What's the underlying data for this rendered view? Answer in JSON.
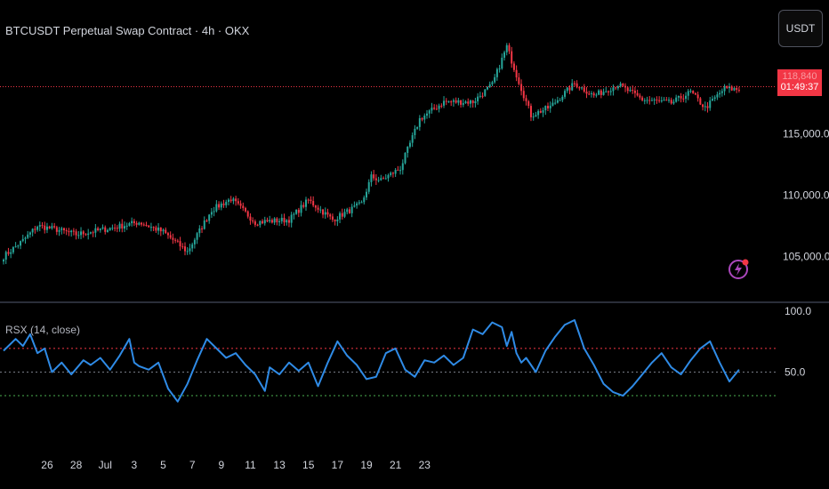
{
  "header": {
    "title": "BTCUSDT Perpetual Swap Contract · 4h · OKX",
    "currency_button": "USDT"
  },
  "price_label": {
    "countdown": "01:49:37",
    "partial_price": "118,840"
  },
  "indicator": {
    "label": "RSX (14, close)"
  },
  "icons": {
    "bolt": "lightning-bolt-icon"
  },
  "colors": {
    "background": "#000000",
    "bull": "#26a69a",
    "bear": "#f23645",
    "rsx_line": "#2f8be6",
    "grid": "#363a45",
    "level_high": "#f23645",
    "level_mid": "#787b86",
    "level_low": "#4caf50",
    "axis_text": "#d1d4dc"
  },
  "chart_data": [
    {
      "type": "candlestick",
      "title": "BTCUSDT Perpetual Swap Contract · 4h · OKX",
      "y_ticks": [
        105000,
        110000,
        115000
      ],
      "y_tick_labels": [
        "105,000.0",
        "110,000.0",
        "115,000.0"
      ],
      "ylim": [
        102000,
        123000
      ],
      "x_tick_labels": [
        "26",
        "28",
        "Jul",
        "3",
        "5",
        "7",
        "9",
        "11",
        "13",
        "15",
        "17",
        "19",
        "21",
        "23"
      ],
      "current_price_line": 118840,
      "anchors": [
        {
          "x": 0,
          "price": 105000
        },
        {
          "x": 8,
          "price": 106300
        },
        {
          "x": 14,
          "price": 107500
        },
        {
          "x": 22,
          "price": 107200
        },
        {
          "x": 30,
          "price": 106800
        },
        {
          "x": 44,
          "price": 107300
        },
        {
          "x": 56,
          "price": 107800
        },
        {
          "x": 66,
          "price": 107000
        },
        {
          "x": 76,
          "price": 105400
        },
        {
          "x": 86,
          "price": 108800
        },
        {
          "x": 94,
          "price": 109700
        },
        {
          "x": 104,
          "price": 107800
        },
        {
          "x": 118,
          "price": 108000
        },
        {
          "x": 126,
          "price": 109600
        },
        {
          "x": 136,
          "price": 108000
        },
        {
          "x": 148,
          "price": 109300
        },
        {
          "x": 152,
          "price": 111500
        },
        {
          "x": 156,
          "price": 111200
        },
        {
          "x": 164,
          "price": 112200
        },
        {
          "x": 172,
          "price": 116200
        },
        {
          "x": 182,
          "price": 117600
        },
        {
          "x": 194,
          "price": 117600
        },
        {
          "x": 202,
          "price": 119000
        },
        {
          "x": 208,
          "price": 122100
        },
        {
          "x": 212,
          "price": 119800
        },
        {
          "x": 218,
          "price": 116500
        },
        {
          "x": 226,
          "price": 117200
        },
        {
          "x": 236,
          "price": 119100
        },
        {
          "x": 244,
          "price": 118100
        },
        {
          "x": 254,
          "price": 119000
        },
        {
          "x": 264,
          "price": 117800
        },
        {
          "x": 276,
          "price": 117500
        },
        {
          "x": 284,
          "price": 118400
        },
        {
          "x": 290,
          "price": 117100
        },
        {
          "x": 298,
          "price": 118700
        },
        {
          "x": 304,
          "price": 118600
        }
      ]
    },
    {
      "type": "line",
      "name": "RSX (14, close)",
      "y_ticks": [
        50
      ],
      "y_tick_labels": [
        "50.0"
      ],
      "top_label": "100.0",
      "ylim": [
        15,
        100
      ],
      "levels": [
        70,
        50,
        30
      ],
      "x": [
        0,
        5,
        8,
        11,
        14,
        17,
        20,
        24,
        28,
        33,
        36,
        40,
        44,
        48,
        52,
        54,
        56,
        60,
        64,
        68,
        72,
        76,
        80,
        84,
        88,
        92,
        96,
        100,
        104,
        108,
        110,
        114,
        118,
        122,
        126,
        130,
        134,
        138,
        142,
        146,
        150,
        154,
        158,
        162,
        166,
        170,
        174,
        178,
        182,
        186,
        190,
        194,
        198,
        202,
        206,
        208,
        210,
        212,
        214,
        216,
        220,
        224,
        228,
        232,
        236,
        240,
        244,
        248,
        252,
        256,
        260,
        264,
        268,
        272,
        276,
        280,
        284,
        288,
        292,
        296,
        300,
        304
      ],
      "values": [
        68,
        78,
        72,
        82,
        66,
        70,
        50,
        58,
        48,
        60,
        56,
        62,
        52,
        64,
        78,
        58,
        55,
        52,
        58,
        36,
        25,
        40,
        60,
        78,
        70,
        62,
        66,
        56,
        48,
        34,
        54,
        48,
        58,
        51,
        58,
        38,
        58,
        76,
        64,
        56,
        44,
        46,
        66,
        70,
        52,
        46,
        60,
        58,
        64,
        56,
        62,
        86,
        82,
        92,
        88,
        72,
        84,
        66,
        58,
        62,
        50,
        68,
        80,
        90,
        94,
        70,
        56,
        40,
        33,
        30,
        38,
        48,
        58,
        66,
        54,
        48,
        60,
        70,
        76,
        58,
        42,
        52
      ]
    }
  ]
}
